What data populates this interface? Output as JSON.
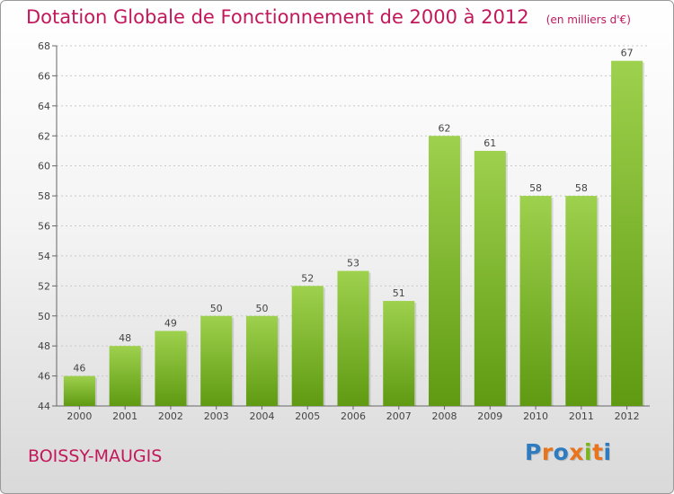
{
  "header": {
    "title": "Dotation Globale de Fonctionnement de 2000 à 2012",
    "subtitle": "(en milliers d'€)"
  },
  "commune": "BOISSY-MAUGIS",
  "brand": {
    "name": "Proxiti",
    "letter_colors": [
      "#2e7bbf",
      "#e8741d",
      "#2e7bbf",
      "#e8741d",
      "#7ab51d",
      "#e8741d",
      "#2e7bbf"
    ]
  },
  "colors": {
    "title": "#c2185b",
    "bar_top": "#9ed14d",
    "bar_bottom": "#5f9a12"
  },
  "chart_data": {
    "type": "bar",
    "title": "Dotation Globale de Fonctionnement de 2000 à 2012",
    "subtitle": "(en milliers d'€)",
    "categories": [
      "2000",
      "2001",
      "2002",
      "2003",
      "2004",
      "2005",
      "2006",
      "2007",
      "2008",
      "2009",
      "2010",
      "2011",
      "2012"
    ],
    "values": [
      46,
      48,
      49,
      50,
      50,
      52,
      53,
      51,
      62,
      61,
      58,
      58,
      67
    ],
    "ylim": [
      44,
      68
    ],
    "yticks": [
      44,
      46,
      48,
      50,
      52,
      54,
      56,
      58,
      60,
      62,
      64,
      66,
      68
    ],
    "grid": true,
    "data_labels": true
  }
}
